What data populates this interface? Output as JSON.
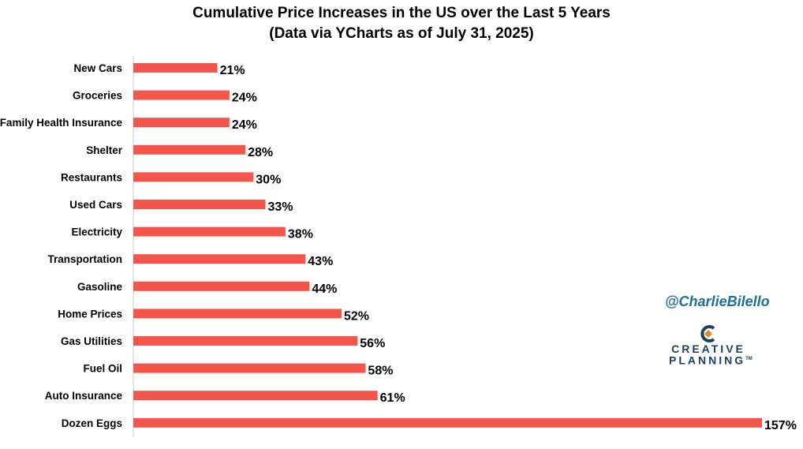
{
  "title": {
    "line1": "Cumulative Price Increases in the US over the Last 5 Years",
    "line2": "(Data via YCharts as of July 31, 2025)"
  },
  "watermark": {
    "handle": "@CharlieBilello",
    "logo_line1": "CREATIVE",
    "logo_line2": "PLANNING",
    "logo_mark": "TM"
  },
  "colors": {
    "bar": "#f4564b",
    "logo_blue": "#1f3f60",
    "logo_orange": "#e3872b",
    "handle": "#1b6f9c"
  },
  "chart_data": {
    "type": "bar",
    "orientation": "horizontal",
    "title": "Cumulative Price Increases in the US over the Last 5 Years (Data via YCharts as of July 31, 2025)",
    "xlabel": "",
    "ylabel": "",
    "unit": "%",
    "xlim": [
      0,
      157
    ],
    "grid": false,
    "categories": [
      "New Cars",
      "Groceries",
      "Family Health Insurance",
      "Shelter",
      "Restaurants",
      "Used Cars",
      "Electricity",
      "Transportation",
      "Gasoline",
      "Home Prices",
      "Gas Utilities",
      "Fuel Oil",
      "Auto Insurance",
      "Dozen Eggs"
    ],
    "values": [
      21,
      24,
      24,
      28,
      30,
      33,
      38,
      43,
      44,
      52,
      56,
      58,
      61,
      157
    ],
    "value_labels": [
      "21%",
      "24%",
      "24%",
      "28%",
      "30%",
      "33%",
      "38%",
      "43%",
      "44%",
      "52%",
      "56%",
      "58%",
      "61%",
      "157%"
    ]
  }
}
